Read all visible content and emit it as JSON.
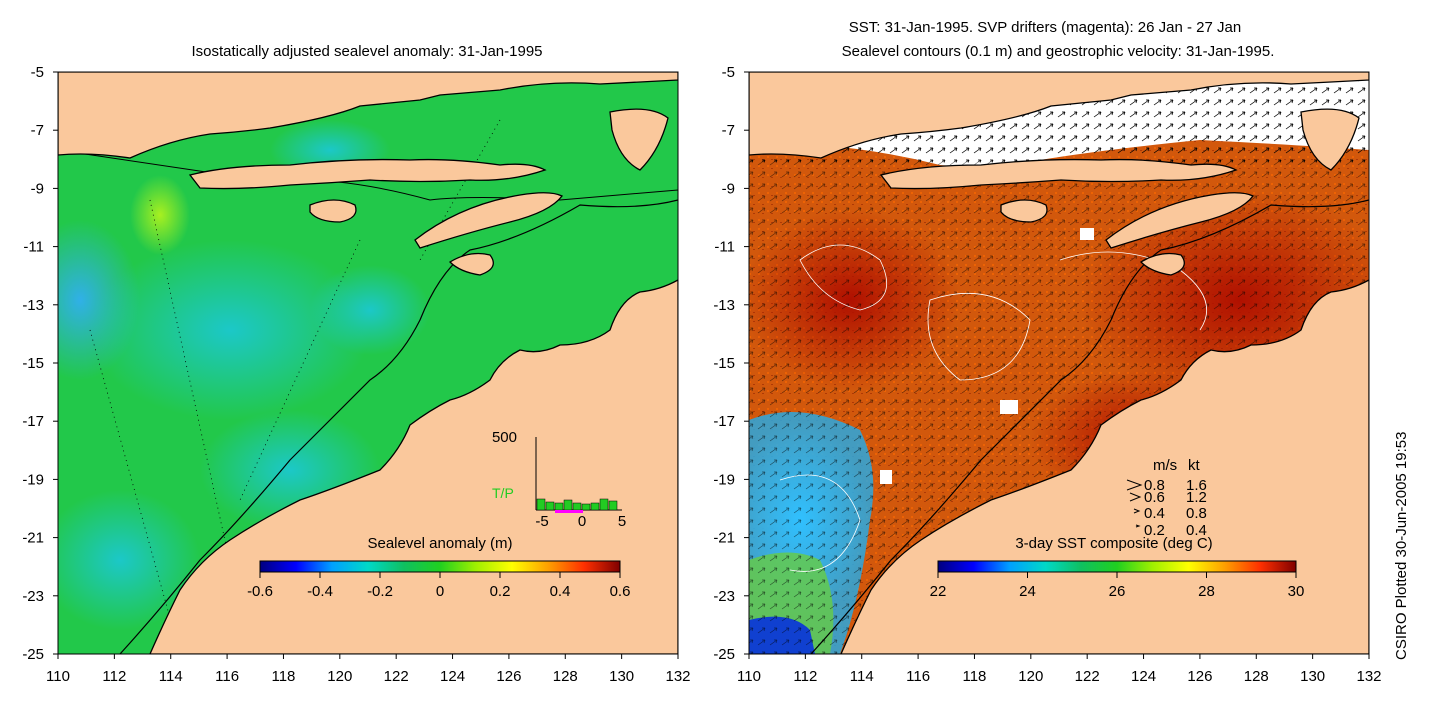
{
  "left_panel": {
    "title": "Isostatically adjusted sealevel anomaly: 31-Jan-1995",
    "colorbar": {
      "label": "Sealevel anomaly (m)",
      "ticks": [
        "-0.6",
        "-0.4",
        "-0.2",
        "0",
        "0.2",
        "0.4",
        "0.6"
      ],
      "range": [
        -0.6,
        0.6
      ],
      "colormap": [
        "#00007f",
        "#0000ff",
        "#00a0ff",
        "#00d8c8",
        "#10c060",
        "#20d020",
        "#a0f000",
        "#ffff00",
        "#ffa000",
        "#ff3000",
        "#7f0000"
      ]
    },
    "inset": {
      "ymax_label": "500",
      "series_label": "T/P",
      "x_ticks": [
        "-5",
        "0",
        "5"
      ],
      "bar_color": "#22cc22",
      "label_color": "#22cc22",
      "marker_color": "#ff00ff"
    }
  },
  "right_panel": {
    "title_line1": "SST: 31-Jan-1995. SVP drifters (magenta): 26 Jan - 27 Jan",
    "title_line2": "Sealevel contours (0.1 m) and geostrophic velocity: 31-Jan-1995.",
    "colorbar": {
      "label": "3-day SST composite (deg C)",
      "ticks": [
        "22",
        "24",
        "26",
        "28",
        "30"
      ],
      "range": [
        22,
        30
      ],
      "colormap": [
        "#00007f",
        "#0000ff",
        "#00a0ff",
        "#00d8c8",
        "#10c060",
        "#20d020",
        "#a0f000",
        "#ffff00",
        "#ffa000",
        "#ff3000",
        "#7f0000"
      ]
    },
    "velocity_legend": {
      "header_ms": "m/s",
      "header_kt": "kt",
      "rows": [
        {
          "ms": "0.8",
          "kt": "1.6"
        },
        {
          "ms": "0.6",
          "kt": "1.2"
        },
        {
          "ms": "0.4",
          "kt": "0.8"
        },
        {
          "ms": "0.2",
          "kt": "0.4"
        }
      ]
    }
  },
  "axes": {
    "lat_ticks": [
      "-5",
      "-7",
      "-9",
      "-11",
      "-13",
      "-15",
      "-17",
      "-19",
      "-21",
      "-23",
      "-25"
    ],
    "lon_ticks": [
      "110",
      "112",
      "114",
      "116",
      "118",
      "120",
      "122",
      "124",
      "126",
      "128",
      "130",
      "132"
    ],
    "lat_range": [
      -25,
      -5
    ],
    "lon_range": [
      110,
      132
    ]
  },
  "credit": "CSIRO Plotted 30-Jun-2005 19:53",
  "colors": {
    "land": "#fac89c",
    "ocean_left": "#22c84a",
    "ocean_right": "#d2580c",
    "coast": "#000000"
  }
}
